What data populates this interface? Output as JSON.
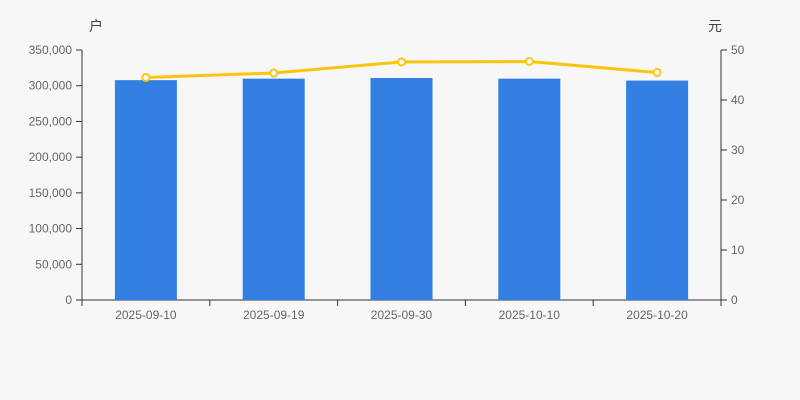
{
  "page": {
    "background": "#f7f7f7"
  },
  "chart_data": {
    "type": "bar",
    "subtype": "bar-with-line-overlay",
    "categories": [
      "2025-09-10",
      "2025-09-19",
      "2025-09-30",
      "2025-10-10",
      "2025-10-20"
    ],
    "series": [
      {
        "name": "户",
        "type": "bar",
        "yaxis": "left",
        "values": [
          307800,
          309900,
          310800,
          309900,
          307200
        ],
        "color": "#3480e2"
      },
      {
        "name": "元",
        "type": "line",
        "yaxis": "right",
        "values": [
          44.5,
          45.4,
          47.6,
          47.7,
          45.5
        ],
        "color": "#fbc50d",
        "marker": "hollow-circle",
        "marker_fill": "#ffffff"
      }
    ],
    "left_axis": {
      "label": "户",
      "min": 0,
      "max": 350000,
      "step": 50000,
      "tick_labels": [
        "0",
        "50,000",
        "100,000",
        "150,000",
        "200,000",
        "250,000",
        "300,000",
        "350,000"
      ]
    },
    "right_axis": {
      "label": "元",
      "min": 0,
      "max": 50,
      "step": 10,
      "tick_labels": [
        "0",
        "10",
        "20",
        "30",
        "40",
        "50"
      ]
    },
    "grid": false,
    "legend_position": "none",
    "axis_color": "#333333",
    "text_color": "#666666",
    "background": "#f7f7f7"
  }
}
